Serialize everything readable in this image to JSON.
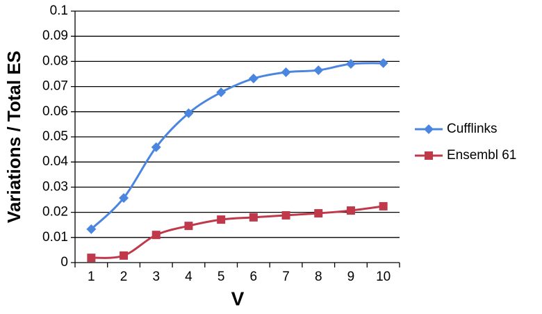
{
  "chart_data": {
    "type": "line",
    "x_label": "V",
    "y_label": "Variations / Total ES",
    "categories": [
      1,
      2,
      3,
      4,
      5,
      6,
      7,
      8,
      9,
      10
    ],
    "series": [
      {
        "name": "Cufflinks",
        "color": "#4a86e0",
        "marker": "diamond",
        "values": [
          0.0133,
          0.0257,
          0.0459,
          0.0594,
          0.0677,
          0.0732,
          0.0757,
          0.0765,
          0.079,
          0.0793
        ]
      },
      {
        "name": "Ensembl 61",
        "color": "#c0394b",
        "marker": "square",
        "values": [
          0.0019,
          0.0028,
          0.011,
          0.0146,
          0.0171,
          0.018,
          0.0188,
          0.0196,
          0.0207,
          0.0224
        ]
      }
    ],
    "ylim": [
      0,
      0.1
    ],
    "yticks": [
      0,
      0.01,
      0.02,
      0.03,
      0.04,
      0.05,
      0.06,
      0.07,
      0.08,
      0.09,
      0.1
    ],
    "grid": true,
    "legend": "right"
  }
}
